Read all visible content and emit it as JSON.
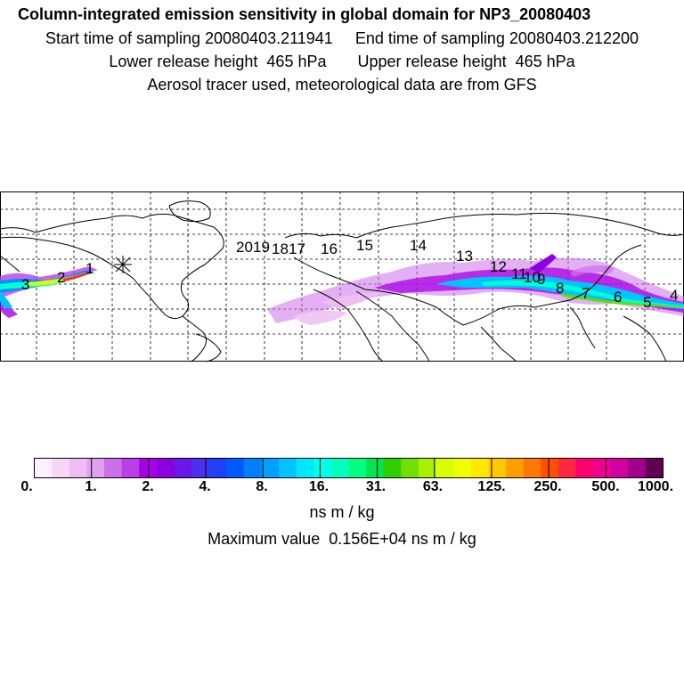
{
  "header": {
    "title": "Column-integrated emission sensitivity in global domain for NP3_20080403",
    "line2": "Start time of sampling 20080403.211941     End time of sampling 20080403.212200",
    "line3": "Lower release height  465 hPa       Upper release height  465 hPa",
    "line4": "Aerosol tracer used, meteorological data are from GFS"
  },
  "map": {
    "release_marker": "asterisk-icon",
    "day_labels": [
      "1",
      "2",
      "3",
      "4",
      "5",
      "6",
      "7",
      "8",
      "9",
      "10",
      "11",
      "12",
      "13",
      "14",
      "15",
      "16",
      "17",
      "18",
      "19",
      "20"
    ]
  },
  "colorbar": {
    "tick_labels": [
      "0.",
      "1.",
      "2.",
      "4.",
      "8.",
      "16.",
      "31.",
      "63.",
      "125.",
      "250.",
      "500.",
      "1000."
    ],
    "colors": [
      "#fff0ff",
      "#f6d8f6",
      "#eebdf2",
      "#e2a0f0",
      "#cc70ea",
      "#b840e6",
      "#a800e6",
      "#8a00e0",
      "#6a18e8",
      "#4a30f0",
      "#2040f8",
      "#0058ff",
      "#0080ff",
      "#00a0ff",
      "#00c4ff",
      "#00e8ff",
      "#00ffea",
      "#00ffc0",
      "#00ff80",
      "#00e650",
      "#30d000",
      "#70e000",
      "#a8f000",
      "#d8ff00",
      "#f0ff00",
      "#ffe800",
      "#ffc800",
      "#ffa000",
      "#ff7800",
      "#ff5000",
      "#ff2840",
      "#ff0070",
      "#f00090",
      "#d000a0",
      "#a0008c",
      "#600050"
    ],
    "unit": "ns m / kg",
    "max_value": "Maximum value  0.156E+04 ns m / kg"
  }
}
